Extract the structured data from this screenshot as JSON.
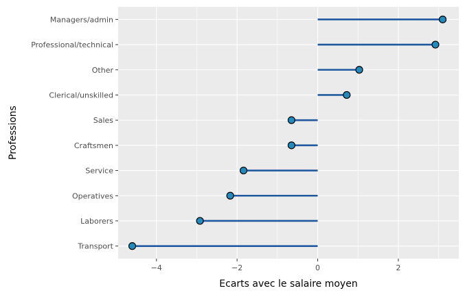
{
  "chart_data": {
    "type": "lollipop",
    "orientation": "horizontal",
    "xlabel": "Ecarts avec le salaire moyen",
    "ylabel": "Professions",
    "xlim": [
      -4.95,
      3.5
    ],
    "x_ticks": [
      -4,
      -2,
      0,
      2
    ],
    "x_tick_labels": [
      "−4",
      "−2",
      "0",
      "2"
    ],
    "baseline": 0,
    "categories": [
      "Managers/admin",
      "Professional/technical",
      "Other",
      "Clerical/unskilled",
      "Sales",
      "Craftsmen",
      "Service",
      "Operatives",
      "Laborers",
      "Transport"
    ],
    "values": [
      3.1,
      2.92,
      1.03,
      0.72,
      -0.65,
      -0.65,
      -1.84,
      -2.17,
      -2.92,
      -4.6
    ],
    "grid": true,
    "colors": {
      "panel_background": "#ebebeb",
      "grid": "#ffffff",
      "segment": "#1f5aa0",
      "point_fill": "#1f8bbf",
      "point_stroke": "#000000",
      "tick_text": "#4d4d4d",
      "axis_title": "#000000"
    }
  }
}
